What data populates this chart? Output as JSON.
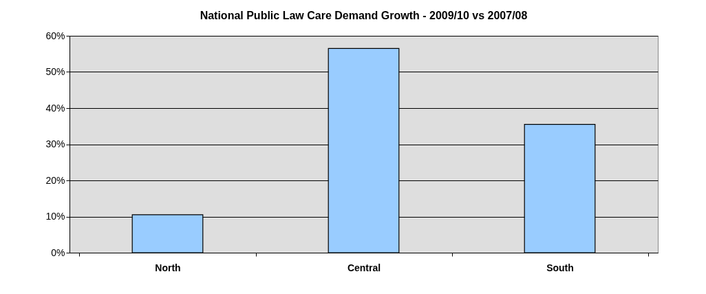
{
  "chart_data": {
    "type": "bar",
    "title": "National Public Law Care Demand Growth - 2009/10 vs 2007/08",
    "categories": [
      "North",
      "Central",
      "South"
    ],
    "values": [
      10.5,
      56.5,
      35.5
    ],
    "color": "#99ccff",
    "ylim": [
      0,
      60
    ],
    "yticks": [
      {
        "value": 0,
        "label": "0%"
      },
      {
        "value": 10,
        "label": "10%"
      },
      {
        "value": 20,
        "label": "20%"
      },
      {
        "value": 30,
        "label": "30%"
      },
      {
        "value": 40,
        "label": "40%"
      },
      {
        "value": 50,
        "label": "50%"
      },
      {
        "value": 60,
        "label": "60%"
      }
    ],
    "grid": "y"
  }
}
